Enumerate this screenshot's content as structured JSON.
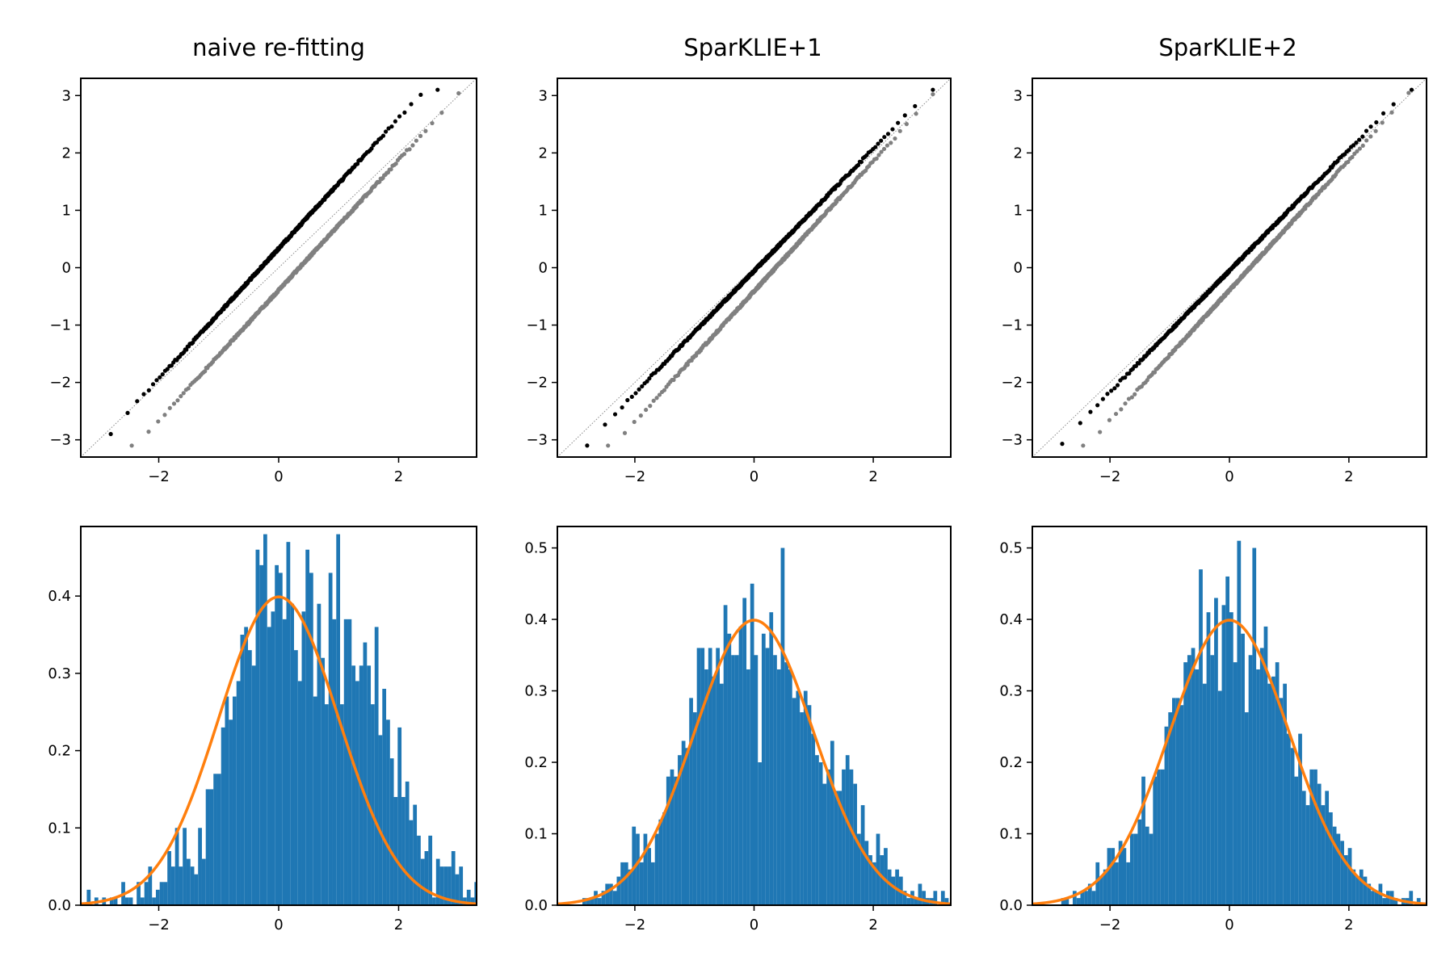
{
  "figure": {
    "panels": [
      {
        "id": "naive",
        "title": "naive re-fitting"
      },
      {
        "id": "spark1",
        "title": "SparKLIE+1"
      },
      {
        "id": "spark2",
        "title": "SparKLIE+2"
      }
    ]
  },
  "chart_data": [
    {
      "type": "scatter",
      "panel": "naive re-fitting",
      "title": "naive re-fitting",
      "plot_kind": "qq-plot",
      "xlim": [
        -3.3,
        3.3
      ],
      "ylim": [
        -3.3,
        3.3
      ],
      "xticks": [
        -2,
        0,
        2
      ],
      "yticks": [
        -3,
        -2,
        -1,
        0,
        1,
        2,
        3
      ],
      "reference_line": "y = x (dotted, gray)",
      "series": [
        {
          "color": "#000000",
          "x_range": [
            -2.8,
            2.65
          ],
          "y_range": [
            -3.1,
            3.1
          ],
          "y_shift": 0.25
        },
        {
          "color": "#808080",
          "x_range": [
            -2.45,
            3.0
          ],
          "y_range": [
            -3.1,
            3.1
          ],
          "y_shift": -0.08
        }
      ],
      "grid": false
    },
    {
      "type": "scatter",
      "panel": "SparKLIE+1",
      "title": "SparKLIE+1",
      "plot_kind": "qq-plot",
      "xlim": [
        -3.3,
        3.3
      ],
      "ylim": [
        -3.3,
        3.3
      ],
      "xticks": [
        -2,
        0,
        2
      ],
      "yticks": [
        -3,
        -2,
        -1,
        0,
        1,
        2,
        3
      ],
      "reference_line": "y = x (dotted, gray)",
      "series": [
        {
          "color": "#000000",
          "x_range": [
            -2.8,
            3.0
          ],
          "y_range": [
            -3.1,
            3.1
          ],
          "y_shift": 0.05
        },
        {
          "color": "#808080",
          "x_range": [
            -2.45,
            3.0
          ],
          "y_range": [
            -3.1,
            3.1
          ],
          "y_shift": -0.1
        }
      ],
      "grid": false
    },
    {
      "type": "scatter",
      "panel": "SparKLIE+2",
      "title": "SparKLIE+2",
      "plot_kind": "qq-plot",
      "xlim": [
        -3.3,
        3.3
      ],
      "ylim": [
        -3.3,
        3.3
      ],
      "xticks": [
        -2,
        0,
        2
      ],
      "yticks": [
        -3,
        -2,
        -1,
        0,
        1,
        2,
        3
      ],
      "reference_line": "y = x (dotted, gray)",
      "series": [
        {
          "color": "#000000",
          "x_range": [
            -2.8,
            3.05
          ],
          "y_range": [
            -3.1,
            3.1
          ],
          "y_shift": 0.08
        },
        {
          "color": "#808080",
          "x_range": [
            -2.45,
            3.0
          ],
          "y_range": [
            -3.1,
            3.1
          ],
          "y_shift": -0.08
        }
      ],
      "grid": false
    },
    {
      "type": "bar",
      "panel": "naive re-fitting",
      "plot_kind": "histogram with normal pdf overlay",
      "xlim": [
        -3.3,
        3.3
      ],
      "ylim": [
        0,
        0.49
      ],
      "xticks": [
        -2,
        0,
        2
      ],
      "yticks": [
        0.0,
        0.1,
        0.2,
        0.3,
        0.4
      ],
      "bin_start": -3.2,
      "bin_width": 0.064,
      "values": [
        0.02,
        0,
        0.01,
        0,
        0.01,
        0,
        0.01,
        0.01,
        0,
        0.03,
        0.01,
        0.01,
        0,
        0.03,
        0.01,
        0.03,
        0.05,
        0.01,
        0.02,
        0.03,
        0.03,
        0.07,
        0.05,
        0.1,
        0.05,
        0.1,
        0.06,
        0.05,
        0.04,
        0.1,
        0.06,
        0.15,
        0.15,
        0.17,
        0.17,
        0.23,
        0.27,
        0.24,
        0.27,
        0.29,
        0.35,
        0.36,
        0.33,
        0.31,
        0.46,
        0.44,
        0.48,
        0.36,
        0.38,
        0.44,
        0.43,
        0.37,
        0.47,
        0.39,
        0.33,
        0.29,
        0.38,
        0.46,
        0.43,
        0.27,
        0.39,
        0.32,
        0.26,
        0.43,
        0.37,
        0.48,
        0.26,
        0.37,
        0.37,
        0.31,
        0.29,
        0.31,
        0.34,
        0.31,
        0.26,
        0.36,
        0.22,
        0.28,
        0.24,
        0.19,
        0.14,
        0.23,
        0.14,
        0.16,
        0.11,
        0.13,
        0.09,
        0.06,
        0.07,
        0.09,
        0.01,
        0.06,
        0.05,
        0.05,
        0.05,
        0.07,
        0.04,
        0.05,
        0.01,
        0.02,
        0.01,
        0.03,
        0,
        0,
        0,
        0.02,
        0.01,
        0.02,
        0,
        0.01
      ],
      "bar_color": "#1f77b4",
      "curve": {
        "color": "#ff7f0e",
        "function": "standard normal pdf",
        "mu": 0,
        "sigma": 1
      },
      "grid": false
    },
    {
      "type": "bar",
      "panel": "SparKLIE+1",
      "plot_kind": "histogram with normal pdf overlay",
      "xlim": [
        -3.3,
        3.3
      ],
      "ylim": [
        0,
        0.53
      ],
      "xticks": [
        -2,
        0,
        2
      ],
      "yticks": [
        0.0,
        0.1,
        0.2,
        0.3,
        0.4,
        0.5
      ],
      "bin_start": -3.2,
      "bin_width": 0.064,
      "values": [
        0,
        0,
        0,
        0,
        0,
        0.01,
        0.01,
        0.01,
        0.02,
        0.01,
        0.02,
        0.03,
        0.03,
        0.02,
        0.04,
        0.06,
        0.06,
        0.05,
        0.11,
        0.1,
        0.06,
        0.1,
        0.08,
        0.06,
        0.1,
        0.12,
        0.13,
        0.18,
        0.19,
        0.18,
        0.21,
        0.23,
        0.22,
        0.29,
        0.27,
        0.36,
        0.36,
        0.33,
        0.36,
        0.32,
        0.36,
        0.31,
        0.42,
        0.38,
        0.35,
        0.35,
        0.39,
        0.43,
        0.33,
        0.45,
        0.35,
        0.2,
        0.38,
        0.36,
        0.41,
        0.35,
        0.33,
        0.5,
        0.34,
        0.33,
        0.29,
        0.3,
        0.27,
        0.3,
        0.28,
        0.24,
        0.21,
        0.2,
        0.17,
        0.19,
        0.23,
        0.16,
        0.16,
        0.19,
        0.21,
        0.19,
        0.17,
        0.1,
        0.14,
        0.09,
        0.07,
        0.06,
        0.1,
        0.07,
        0.08,
        0.05,
        0.04,
        0.05,
        0.04,
        0.02,
        0.01,
        0.02,
        0.01,
        0.03,
        0.02,
        0.01,
        0.01,
        0.02,
        0,
        0.02,
        0.01,
        0,
        0.01,
        0.03,
        0,
        0,
        0,
        0,
        0,
        0.01
      ],
      "bar_color": "#1f77b4",
      "curve": {
        "color": "#ff7f0e",
        "function": "standard normal pdf",
        "mu": 0,
        "sigma": 1
      },
      "grid": false
    },
    {
      "type": "bar",
      "panel": "SparKLIE+2",
      "plot_kind": "histogram with normal pdf overlay",
      "xlim": [
        -3.3,
        3.3
      ],
      "ylim": [
        0,
        0.53
      ],
      "xticks": [
        -2,
        0,
        2
      ],
      "yticks": [
        0.0,
        0.1,
        0.2,
        0.3,
        0.4,
        0.5
      ],
      "bin_start": -3.2,
      "bin_width": 0.064,
      "values": [
        0,
        0,
        0,
        0,
        0,
        0,
        0.01,
        0.01,
        0,
        0.02,
        0.01,
        0.02,
        0.02,
        0.03,
        0.02,
        0.06,
        0.04,
        0.05,
        0.08,
        0.08,
        0.06,
        0.09,
        0.08,
        0.06,
        0.1,
        0.1,
        0.12,
        0.18,
        0.11,
        0.1,
        0.18,
        0.19,
        0.19,
        0.25,
        0.27,
        0.29,
        0.29,
        0.28,
        0.34,
        0.35,
        0.36,
        0.33,
        0.47,
        0.31,
        0.41,
        0.35,
        0.43,
        0.3,
        0.42,
        0.46,
        0.41,
        0.34,
        0.51,
        0.38,
        0.27,
        0.35,
        0.5,
        0.33,
        0.36,
        0.39,
        0.31,
        0.32,
        0.34,
        0.29,
        0.31,
        0.24,
        0.22,
        0.18,
        0.24,
        0.16,
        0.14,
        0.19,
        0.19,
        0.17,
        0.14,
        0.16,
        0.13,
        0.11,
        0.1,
        0.09,
        0.07,
        0.08,
        0.05,
        0.04,
        0.05,
        0.04,
        0.03,
        0.02,
        0.02,
        0.03,
        0.01,
        0.02,
        0.02,
        0.01,
        0,
        0.01,
        0.01,
        0.02,
        0,
        0.01,
        0,
        0,
        0,
        0,
        0,
        0,
        0,
        0,
        0,
        0.01
      ],
      "bar_color": "#1f77b4",
      "curve": {
        "color": "#ff7f0e",
        "function": "standard normal pdf",
        "mu": 0,
        "sigma": 1
      },
      "grid": false
    }
  ]
}
